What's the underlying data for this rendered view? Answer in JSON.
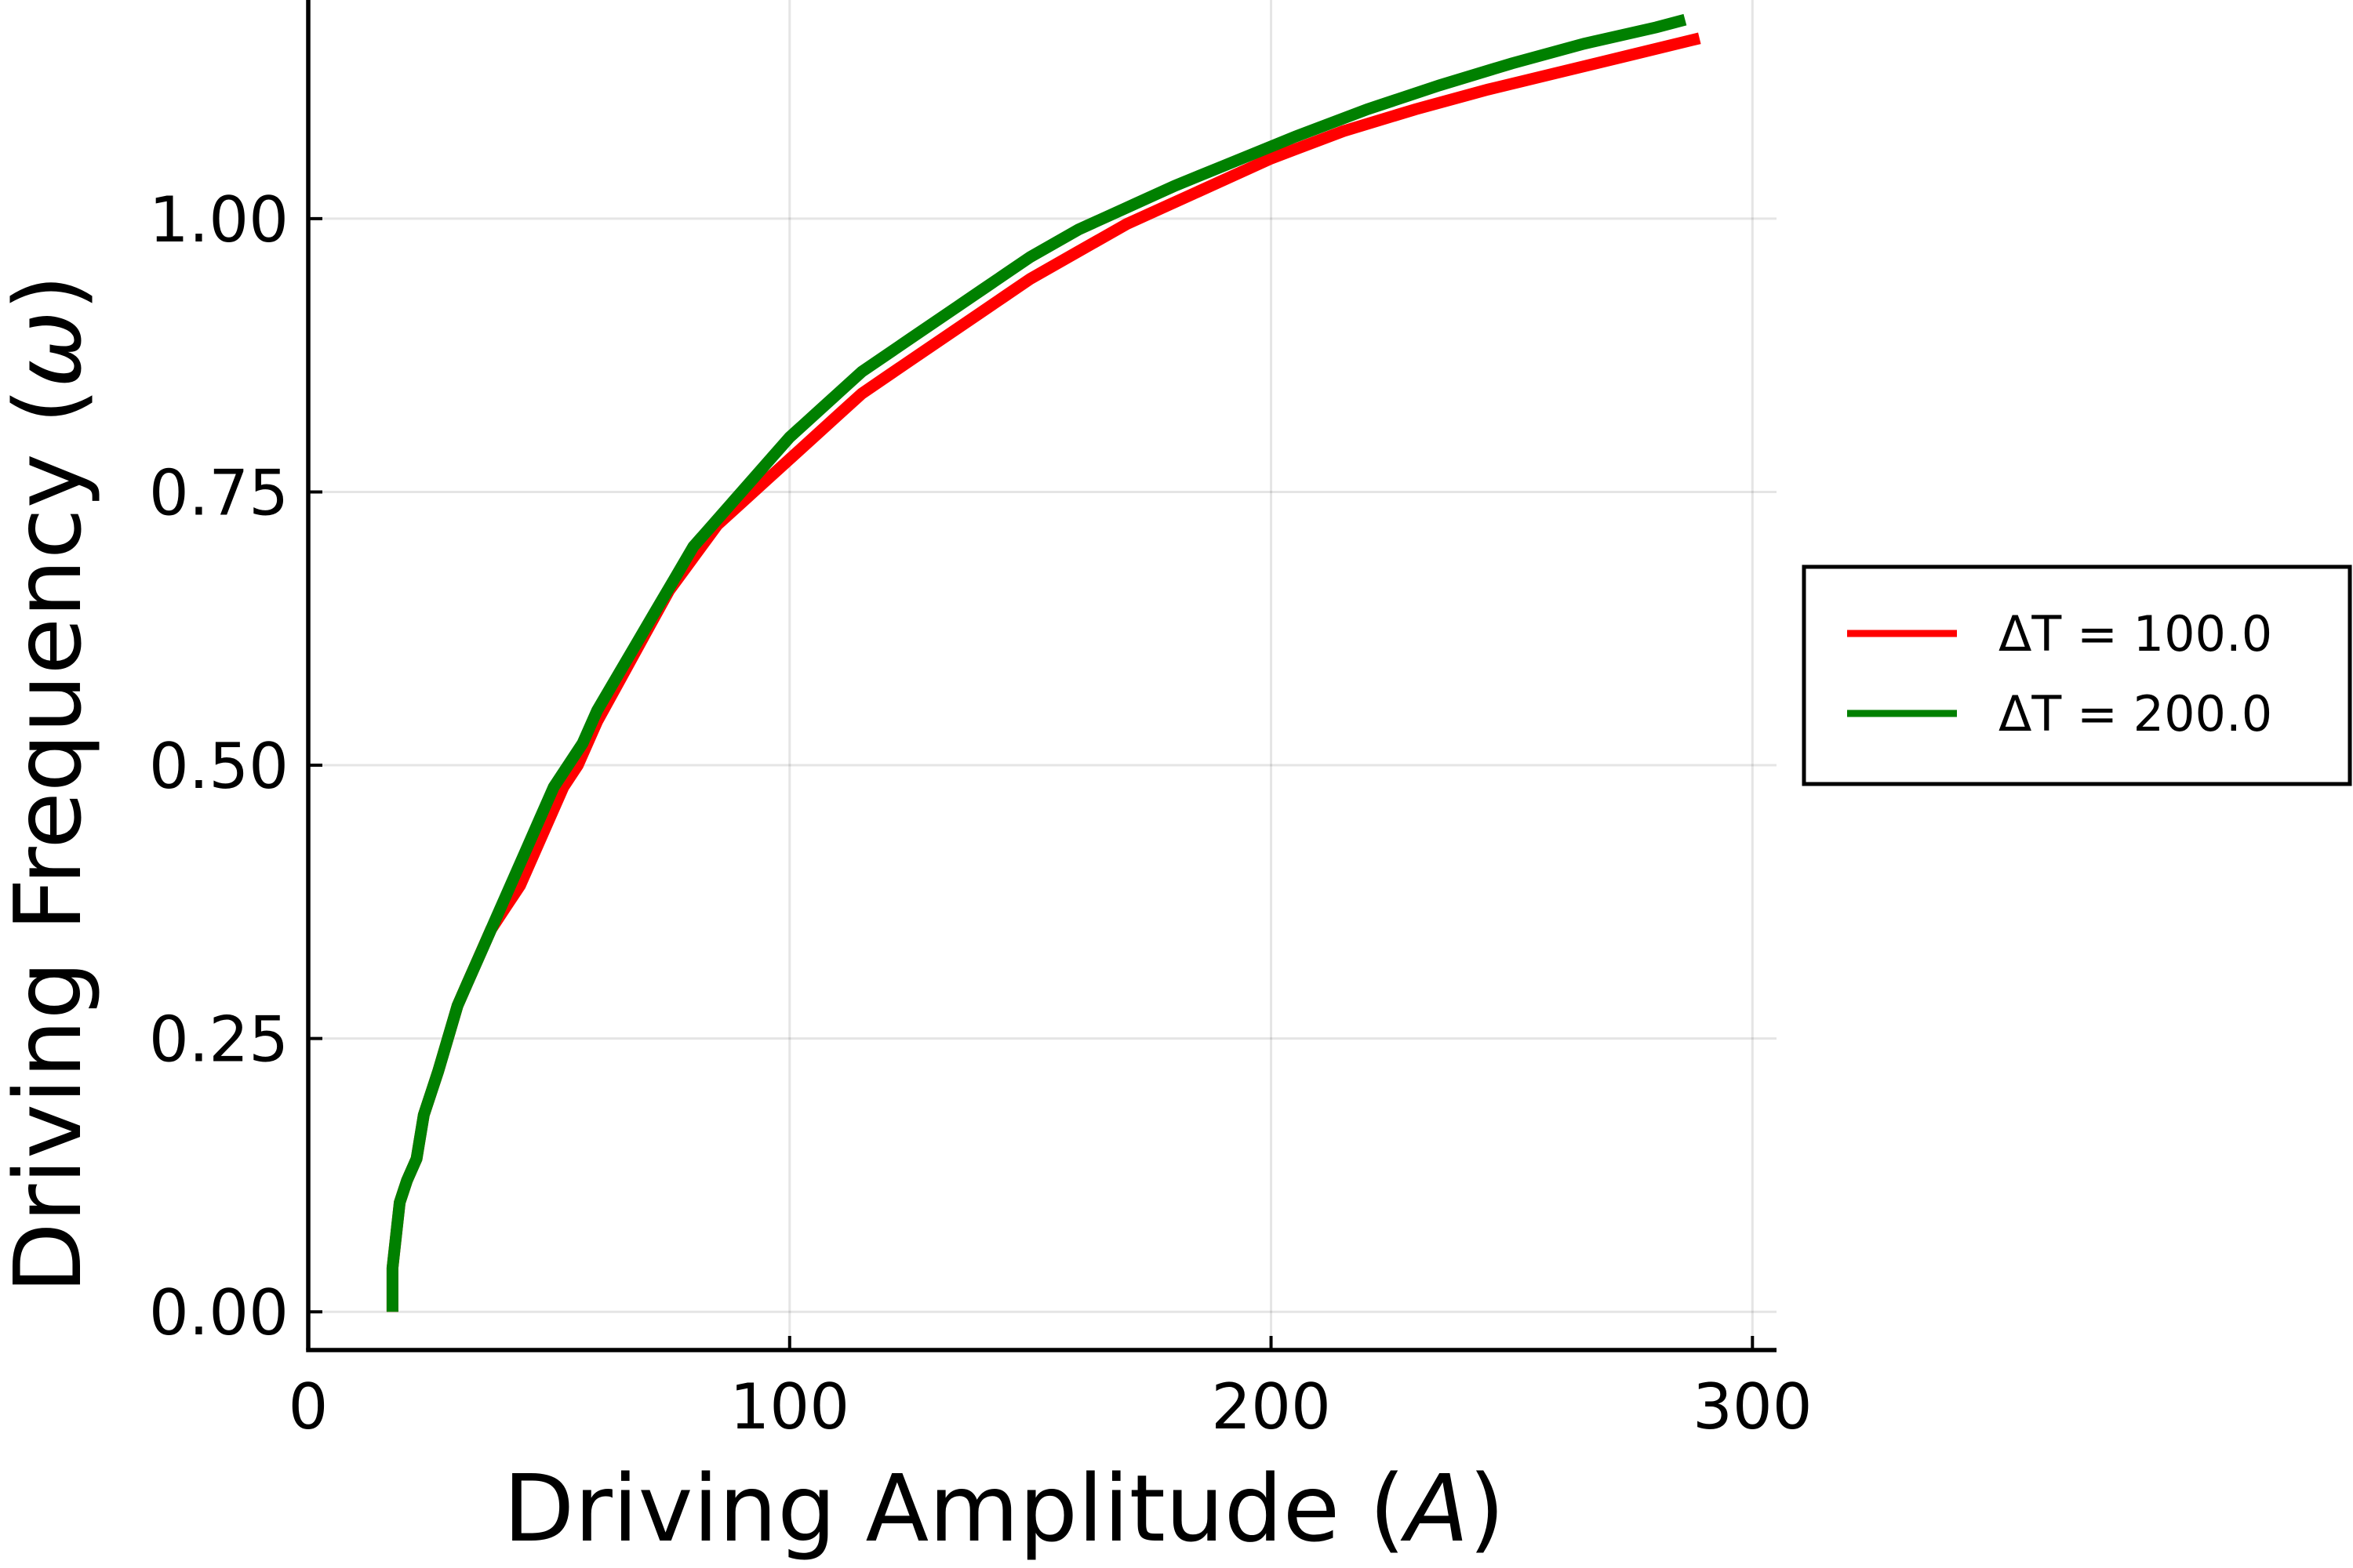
{
  "chart_data": {
    "type": "line",
    "xlabel": "Driving Amplitude (",
    "xlabel_var": "A",
    "xlabel_end": ")",
    "ylabel": "Driving Frequency (",
    "ylabel_var": "ω",
    "ylabel_end": ")",
    "xlim": [
      0,
      305
    ],
    "ylim": [
      -0.035,
      1.2
    ],
    "grid": true,
    "legend_position": "outside-right",
    "x_ticks": [
      0,
      100,
      200,
      300
    ],
    "x_tick_labels": [
      "0",
      "100",
      "200",
      "300"
    ],
    "y_ticks": [
      0,
      0.25,
      0.5,
      0.75,
      1.0
    ],
    "y_tick_labels": [
      "0.00",
      "0.25",
      "0.50",
      "0.75",
      "1.00"
    ],
    "series": [
      {
        "name": "ΔT = 100.0",
        "color": "#ff0000",
        "x": [
          17.5,
          17.5,
          19,
          20.5,
          22.5,
          24,
          25.5,
          27,
          29,
          31,
          33,
          35,
          38,
          41,
          44,
          47,
          50,
          53,
          56,
          60,
          65,
          70,
          75,
          80,
          85,
          90,
          95,
          100,
          105,
          110,
          115,
          120,
          125,
          130,
          135,
          140,
          145,
          150,
          160,
          170,
          185,
          200,
          215,
          230,
          245,
          260,
          275,
          289
        ],
        "y": [
          0.0,
          0.04,
          0.1,
          0.12,
          0.14,
          0.18,
          0.2,
          0.22,
          0.25,
          0.28,
          0.3,
          0.32,
          0.35,
          0.37,
          0.39,
          0.42,
          0.45,
          0.48,
          0.5,
          0.54,
          0.58,
          0.62,
          0.66,
          0.69,
          0.72,
          0.74,
          0.76,
          0.78,
          0.8,
          0.82,
          0.84,
          0.855,
          0.87,
          0.885,
          0.9,
          0.915,
          0.93,
          0.945,
          0.97,
          0.995,
          1.025,
          1.055,
          1.08,
          1.1,
          1.118,
          1.134,
          1.15,
          1.165
        ]
      },
      {
        "name": "ΔT = 200.0",
        "color": "#008000",
        "x": [
          17.5,
          17.5,
          19,
          20.5,
          22.5,
          24,
          25.5,
          27,
          29,
          31,
          33,
          36,
          39,
          42,
          45,
          48,
          51,
          54,
          57,
          60,
          64,
          68,
          72,
          76,
          80,
          84,
          88,
          92,
          96,
          100,
          105,
          110,
          115,
          120,
          125,
          130,
          135,
          140,
          145,
          150,
          160,
          170,
          180,
          190,
          205,
          220,
          235,
          250,
          265,
          280,
          286
        ],
        "y": [
          0.0,
          0.04,
          0.1,
          0.12,
          0.14,
          0.18,
          0.2,
          0.22,
          0.25,
          0.28,
          0.3,
          0.33,
          0.36,
          0.39,
          0.42,
          0.45,
          0.48,
          0.5,
          0.52,
          0.55,
          0.58,
          0.61,
          0.64,
          0.67,
          0.7,
          0.72,
          0.74,
          0.76,
          0.78,
          0.8,
          0.82,
          0.84,
          0.86,
          0.875,
          0.89,
          0.905,
          0.92,
          0.935,
          0.95,
          0.965,
          0.99,
          1.01,
          1.03,
          1.048,
          1.075,
          1.1,
          1.122,
          1.142,
          1.16,
          1.175,
          1.182
        ]
      }
    ]
  }
}
